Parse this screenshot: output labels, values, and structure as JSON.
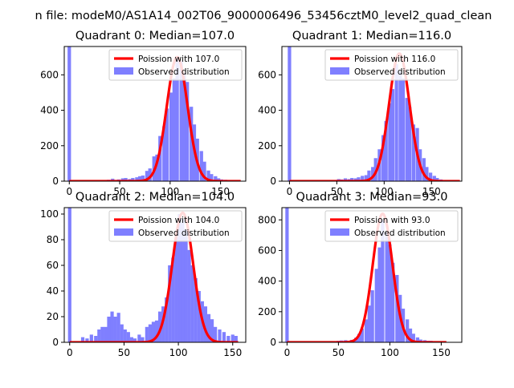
{
  "suptitle": "n file: modeM0/AS1A14_002T06_9000006496_53456cztM0_level2_quad_clean",
  "colors": {
    "fit": "#ff0000",
    "hist": "#7f7fff",
    "axis": "#000000"
  },
  "chart_data": [
    {
      "type": "bar",
      "title": "Quadrant 0: Median=107.0",
      "xlim": [
        -5,
        175
      ],
      "ylim": [
        0,
        760
      ],
      "xticks": [
        0,
        50,
        100,
        150
      ],
      "yticks": [
        0,
        200,
        400,
        600
      ],
      "legend": [
        "Poission with 107.0",
        "Observed distribution"
      ],
      "legend_position": "top-right",
      "median": 107.0,
      "bin_width": 3.4,
      "bins": [
        [
          0,
          760
        ],
        [
          39,
          8
        ],
        [
          43,
          14
        ],
        [
          46,
          6
        ],
        [
          49,
          10
        ],
        [
          53,
          16
        ],
        [
          56,
          18
        ],
        [
          60,
          12
        ],
        [
          63,
          18
        ],
        [
          67,
          22
        ],
        [
          70,
          28
        ],
        [
          73,
          32
        ],
        [
          77,
          58
        ],
        [
          80,
          72
        ],
        [
          84,
          140
        ],
        [
          87,
          150
        ],
        [
          90,
          255
        ],
        [
          94,
          310
        ],
        [
          97,
          410
        ],
        [
          101,
          500
        ],
        [
          104,
          580
        ],
        [
          107,
          700
        ],
        [
          111,
          680
        ],
        [
          114,
          610
        ],
        [
          117,
          560
        ],
        [
          121,
          420
        ],
        [
          124,
          320
        ],
        [
          127,
          240
        ],
        [
          131,
          170
        ],
        [
          134,
          110
        ],
        [
          138,
          60
        ],
        [
          141,
          40
        ],
        [
          145,
          28
        ],
        [
          148,
          16
        ],
        [
          151,
          10
        ],
        [
          155,
          8
        ]
      ],
      "fit": {
        "amplitude": 700,
        "mean": 107,
        "sd": 10.3,
        "x_range": [
          0,
          170
        ]
      }
    },
    {
      "type": "bar",
      "title": "Quadrant 1: Median=116.0",
      "xlim": [
        -8,
        182
      ],
      "ylim": [
        0,
        760
      ],
      "xticks": [
        0,
        50,
        100,
        150
      ],
      "yticks": [
        0,
        200,
        400,
        600
      ],
      "legend": [
        "Poission with 116.0",
        "Observed distribution"
      ],
      "legend_position": "top-right",
      "median": 116.0,
      "bin_width": 3.6,
      "bins": [
        [
          0,
          760
        ],
        [
          48,
          6
        ],
        [
          52,
          12
        ],
        [
          55,
          10
        ],
        [
          59,
          16
        ],
        [
          63,
          12
        ],
        [
          66,
          18
        ],
        [
          70,
          16
        ],
        [
          73,
          22
        ],
        [
          77,
          30
        ],
        [
          81,
          34
        ],
        [
          84,
          60
        ],
        [
          88,
          80
        ],
        [
          91,
          130
        ],
        [
          95,
          180
        ],
        [
          99,
          260
        ],
        [
          102,
          340
        ],
        [
          106,
          440
        ],
        [
          109,
          520
        ],
        [
          113,
          660
        ],
        [
          117,
          620
        ],
        [
          120,
          580
        ],
        [
          124,
          470
        ],
        [
          127,
          420
        ],
        [
          131,
          320
        ],
        [
          135,
          300
        ],
        [
          138,
          180
        ],
        [
          142,
          130
        ],
        [
          145,
          80
        ],
        [
          149,
          48
        ],
        [
          153,
          30
        ],
        [
          156,
          18
        ],
        [
          160,
          10
        ]
      ],
      "fit": {
        "amplitude": 720,
        "mean": 116,
        "sd": 10.8,
        "x_range": [
          0,
          180
        ]
      }
    },
    {
      "type": "bar",
      "title": "Quadrant 2: Median=104.0",
      "xlim": [
        -5,
        162
      ],
      "ylim": [
        0,
        105
      ],
      "xticks": [
        0,
        50,
        100,
        150
      ],
      "yticks": [
        0,
        20,
        40,
        60,
        80,
        100
      ],
      "legend": [
        "Poission with 104.0",
        "Observed distribution"
      ],
      "legend_position": "top-right",
      "median": 104.0,
      "bin_width": 3.1,
      "bins": [
        [
          0,
          105
        ],
        [
          12,
          4
        ],
        [
          16,
          3
        ],
        [
          20,
          6
        ],
        [
          24,
          5
        ],
        [
          27,
          10
        ],
        [
          30,
          12
        ],
        [
          33,
          12
        ],
        [
          36,
          20
        ],
        [
          39,
          24
        ],
        [
          42,
          20
        ],
        [
          45,
          23
        ],
        [
          48,
          14
        ],
        [
          51,
          10
        ],
        [
          54,
          8
        ],
        [
          57,
          4
        ],
        [
          60,
          3
        ],
        [
          64,
          6
        ],
        [
          67,
          4
        ],
        [
          71,
          12
        ],
        [
          74,
          14
        ],
        [
          77,
          16
        ],
        [
          80,
          17
        ],
        [
          83,
          24
        ],
        [
          86,
          28
        ],
        [
          89,
          35
        ],
        [
          92,
          60
        ],
        [
          95,
          66
        ],
        [
          98,
          82
        ],
        [
          101,
          100
        ],
        [
          104,
          96
        ],
        [
          107,
          88
        ],
        [
          110,
          72
        ],
        [
          113,
          60
        ],
        [
          116,
          50
        ],
        [
          119,
          40
        ],
        [
          122,
          32
        ],
        [
          125,
          28
        ],
        [
          128,
          22
        ],
        [
          131,
          18
        ],
        [
          134,
          12
        ],
        [
          138,
          10
        ],
        [
          142,
          8
        ],
        [
          146,
          5
        ],
        [
          150,
          6
        ],
        [
          153,
          5
        ]
      ],
      "fit": {
        "amplitude": 101,
        "mean": 104,
        "sd": 9.6,
        "x_range": [
          0,
          155
        ]
      }
    },
    {
      "type": "bar",
      "title": "Quadrant 3: Median=93.0",
      "xlim": [
        -5,
        170
      ],
      "ylim": [
        0,
        880
      ],
      "xticks": [
        0,
        50,
        100,
        150
      ],
      "yticks": [
        0,
        200,
        400,
        600,
        800
      ],
      "legend": [
        "Poission with 93.0",
        "Observed distribution"
      ],
      "legend_position": "top-right",
      "median": 93.0,
      "bin_width": 3.3,
      "bins": [
        [
          0,
          880
        ],
        [
          40,
          5
        ],
        [
          43,
          8
        ],
        [
          47,
          6
        ],
        [
          50,
          10
        ],
        [
          53,
          12
        ],
        [
          57,
          14
        ],
        [
          60,
          10
        ],
        [
          63,
          16
        ],
        [
          67,
          30
        ],
        [
          70,
          55
        ],
        [
          73,
          90
        ],
        [
          77,
          150
        ],
        [
          80,
          240
        ],
        [
          83,
          340
        ],
        [
          87,
          480
        ],
        [
          90,
          620
        ],
        [
          93,
          800
        ],
        [
          97,
          720
        ],
        [
          100,
          640
        ],
        [
          103,
          520
        ],
        [
          107,
          440
        ],
        [
          110,
          310
        ],
        [
          113,
          220
        ],
        [
          117,
          150
        ],
        [
          120,
          90
        ],
        [
          123,
          56
        ],
        [
          127,
          32
        ],
        [
          130,
          18
        ],
        [
          134,
          14
        ],
        [
          137,
          10
        ],
        [
          140,
          10
        ],
        [
          144,
          6
        ]
      ],
      "fit": {
        "amplitude": 840,
        "mean": 93,
        "sd": 9.6,
        "x_range": [
          0,
          155
        ]
      }
    }
  ]
}
